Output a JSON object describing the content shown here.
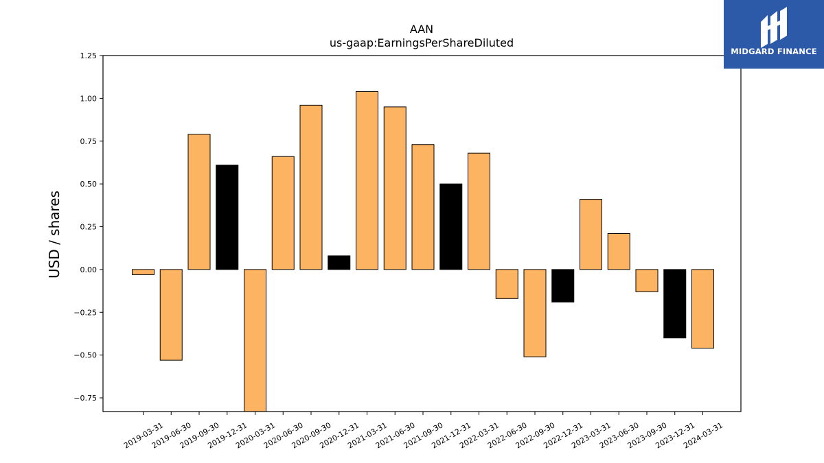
{
  "brand": {
    "name": "MIDGARD FINANCE",
    "logo_icon": "midgard-logo-icon",
    "background": "#2c5aa8"
  },
  "chart_data": {
    "type": "bar",
    "title": "AAN",
    "subtitle": "us-gaap:EarningsPerShareDiluted",
    "xlabel": "",
    "ylabel": "USD / shares",
    "categories": [
      "2019-03-31",
      "2019-06-30",
      "2019-09-30",
      "2019-12-31",
      "2020-03-31",
      "2020-06-30",
      "2020-09-30",
      "2020-12-31",
      "2021-03-31",
      "2021-06-30",
      "2021-09-30",
      "2021-12-31",
      "2022-03-31",
      "2022-06-30",
      "2022-09-30",
      "2022-12-31",
      "2023-03-31",
      "2023-06-30",
      "2023-09-30",
      "2023-12-31",
      "2024-03-31"
    ],
    "values": [
      -0.03,
      -0.53,
      0.79,
      0.61,
      -0.83,
      0.66,
      0.96,
      0.08,
      1.04,
      0.95,
      0.73,
      0.5,
      0.68,
      -0.17,
      -0.51,
      -0.19,
      0.41,
      0.21,
      -0.13,
      -0.4,
      -0.46
    ],
    "bar_colors": [
      "#fdb462",
      "#fdb462",
      "#fdb462",
      "#000000",
      "#fdb462",
      "#fdb462",
      "#fdb462",
      "#000000",
      "#fdb462",
      "#fdb462",
      "#fdb462",
      "#000000",
      "#fdb462",
      "#fdb462",
      "#fdb462",
      "#000000",
      "#fdb462",
      "#fdb462",
      "#fdb462",
      "#000000",
      "#fdb462"
    ],
    "ylim": [
      -0.83,
      1.25
    ],
    "yticks": [
      -0.75,
      -0.5,
      -0.25,
      0.0,
      0.25,
      0.5,
      0.75,
      1.0,
      1.25
    ],
    "ytick_labels": [
      "−0.75",
      "−0.50",
      "−0.25",
      "0.00",
      "0.25",
      "0.50",
      "0.75",
      "1.00",
      "1.25"
    ],
    "grid": false,
    "legend": "none"
  }
}
